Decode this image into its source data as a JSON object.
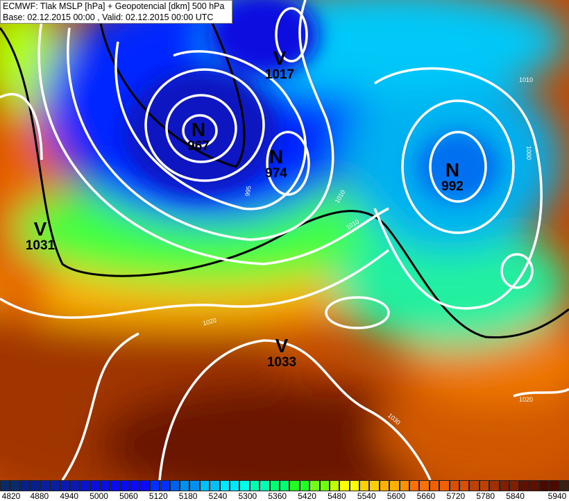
{
  "header": {
    "title": "ECMWF: Tlak MSLP [hPa] + Geopotencial [dkm] 500 hPa",
    "subtitle": "Base: 02.12.2015 00:00 , Valid: 02.12.2015 00:00 UTC"
  },
  "centers": [
    {
      "letter": "V",
      "value": "1017",
      "kind": "high"
    },
    {
      "letter": "N",
      "value": "967",
      "kind": "low"
    },
    {
      "letter": "N",
      "value": "974",
      "kind": "low"
    },
    {
      "letter": "N",
      "value": "992",
      "kind": "low"
    },
    {
      "letter": "V",
      "value": "1031",
      "kind": "high"
    },
    {
      "letter": "V",
      "value": "1033",
      "kind": "high"
    }
  ],
  "isobar_labels": [
    "1010",
    "1000",
    "1010",
    "1010",
    "1020",
    "1030",
    "1020",
    "995",
    "1000"
  ],
  "colorbar": {
    "min": 4820,
    "max": 5940,
    "step": 20,
    "tick_labels": [
      "4820",
      "4880",
      "4940",
      "5000",
      "5060",
      "5120",
      "5180",
      "5240",
      "5300",
      "5360",
      "5420",
      "5480",
      "5540",
      "5600",
      "5660",
      "5720",
      "5780",
      "5840",
      "5940"
    ],
    "colors": [
      "#0a2a6a",
      "#08208a",
      "#0a1ea0",
      "#0a18b4",
      "#0a14c8",
      "#0a10dc",
      "#0a0cf0",
      "#0a0aff",
      "#0030ff",
      "#0060f0",
      "#0090f0",
      "#00c0f8",
      "#00e8ff",
      "#00ffe8",
      "#00ffb0",
      "#00ff70",
      "#20ff20",
      "#70ff10",
      "#c0ff00",
      "#ffff00",
      "#ffd000",
      "#ffb000",
      "#ff9000",
      "#ff7000",
      "#f06000",
      "#d85000",
      "#c04000",
      "#a03000",
      "#802000",
      "#601000",
      "#4a0a00",
      "#3a2010"
    ]
  }
}
